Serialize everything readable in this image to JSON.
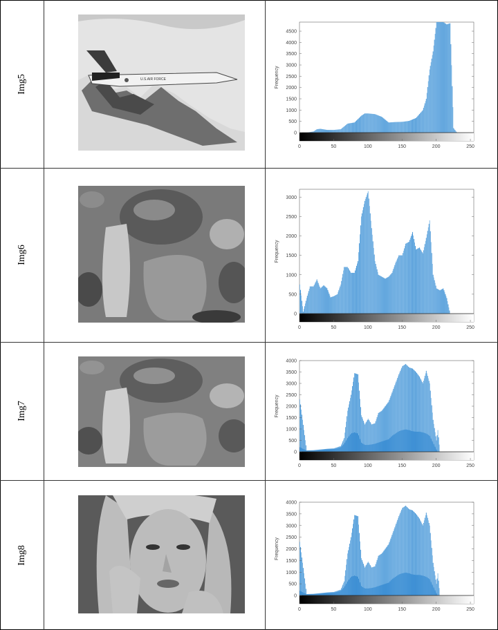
{
  "rows": [
    {
      "label": "Img5",
      "image": "fighter-jet-grayscale"
    },
    {
      "label": "Img6",
      "image": "peppers-grayscale"
    },
    {
      "label": "Img7",
      "image": "peppers-grayscale-contrast"
    },
    {
      "label": "Img8",
      "image": "woman-portrait-grayscale"
    }
  ],
  "chart_data": [
    {
      "type": "bar",
      "title": "",
      "xlabel": "",
      "ylabel": "Frequency",
      "xlim": [
        0,
        255
      ],
      "ylim": [
        0,
        4900
      ],
      "xticks": [
        0,
        50,
        100,
        150,
        200,
        250
      ],
      "yticks": [
        0,
        500,
        1000,
        1500,
        2000,
        2500,
        3000,
        3500,
        4000,
        4500
      ],
      "grid": false,
      "colorbar": "grayscale 0-255 below axis",
      "x": [
        0,
        10,
        20,
        25,
        30,
        40,
        50,
        60,
        70,
        80,
        90,
        95,
        100,
        110,
        120,
        130,
        140,
        150,
        160,
        170,
        180,
        185,
        190,
        195,
        200,
        205,
        210,
        215,
        220,
        225,
        230,
        255
      ],
      "values": [
        0,
        0,
        50,
        150,
        170,
        120,
        120,
        150,
        400,
        450,
        750,
        850,
        850,
        820,
        700,
        450,
        470,
        480,
        520,
        650,
        1000,
        1500,
        2800,
        3600,
        4900,
        4900,
        4900,
        4800,
        4850,
        200,
        0,
        0
      ]
    },
    {
      "type": "bar",
      "title": "",
      "xlabel": "",
      "ylabel": "Frequency",
      "xlim": [
        0,
        255
      ],
      "ylim": [
        0,
        3200
      ],
      "xticks": [
        0,
        50,
        100,
        150,
        200,
        250
      ],
      "yticks": [
        0,
        500,
        1000,
        1500,
        2000,
        2500,
        3000
      ],
      "grid": false,
      "colorbar": "grayscale 0-255 below axis",
      "x": [
        0,
        5,
        10,
        15,
        20,
        25,
        30,
        35,
        40,
        45,
        50,
        55,
        60,
        65,
        70,
        75,
        80,
        85,
        90,
        95,
        100,
        105,
        110,
        115,
        120,
        125,
        130,
        135,
        140,
        145,
        150,
        155,
        160,
        165,
        170,
        175,
        180,
        185,
        190,
        195,
        200,
        205,
        210,
        215,
        220,
        225,
        255
      ],
      "values": [
        750,
        50,
        400,
        700,
        700,
        880,
        650,
        730,
        650,
        420,
        450,
        500,
        750,
        1200,
        1200,
        1050,
        1050,
        1350,
        2500,
        2900,
        3150,
        2200,
        1350,
        1000,
        950,
        900,
        950,
        1050,
        1300,
        1500,
        1500,
        1800,
        1850,
        2100,
        1650,
        1700,
        1550,
        1950,
        2400,
        1000,
        650,
        600,
        650,
        400,
        0,
        0,
        0
      ]
    },
    {
      "type": "bar",
      "title": "",
      "xlabel": "",
      "ylabel": "Frequency",
      "xlim": [
        0,
        255
      ],
      "ylim": [
        0,
        4000
      ],
      "xticks": [
        0,
        50,
        100,
        150,
        200,
        250
      ],
      "yticks": [
        0,
        500,
        1000,
        1500,
        2000,
        2500,
        3000,
        3500,
        4000
      ],
      "grid": false,
      "colorbar": "grayscale 0-255 below axis",
      "x": [
        0,
        10,
        20,
        30,
        40,
        50,
        55,
        60,
        65,
        70,
        75,
        80,
        85,
        90,
        95,
        100,
        105,
        110,
        115,
        120,
        125,
        130,
        135,
        140,
        145,
        150,
        155,
        160,
        165,
        170,
        175,
        180,
        185,
        190,
        195,
        200,
        202,
        205,
        255
      ],
      "values": [
        2300,
        60,
        70,
        100,
        130,
        150,
        200,
        250,
        600,
        1800,
        2500,
        3450,
        3400,
        1600,
        1200,
        1450,
        1200,
        1250,
        1700,
        1800,
        2000,
        2200,
        2600,
        3000,
        3400,
        3750,
        3850,
        3700,
        3650,
        3500,
        3300,
        3000,
        3550,
        3000,
        1400,
        500,
        950,
        0,
        0
      ],
      "lower_envelope": [
        200,
        50,
        60,
        80,
        100,
        120,
        150,
        200,
        350,
        600,
        800,
        850,
        800,
        400,
        300,
        300,
        320,
        350,
        400,
        450,
        500,
        550,
        700,
        800,
        900,
        950,
        980,
        950,
        900,
        880,
        880,
        850,
        800,
        700,
        400,
        100,
        0,
        0,
        0
      ]
    },
    {
      "type": "bar",
      "title": "",
      "xlabel": "",
      "ylabel": "Frequency",
      "xlim": [
        0,
        255
      ],
      "ylim": [
        0,
        4000
      ],
      "xticks": [
        0,
        50,
        100,
        150,
        200,
        250
      ],
      "yticks": [
        0,
        500,
        1000,
        1500,
        2000,
        2500,
        3000,
        3500,
        4000
      ],
      "grid": false,
      "colorbar": "grayscale 0-255 below axis",
      "x": [
        0,
        10,
        20,
        30,
        40,
        50,
        55,
        60,
        65,
        70,
        75,
        80,
        85,
        90,
        95,
        100,
        105,
        110,
        115,
        120,
        125,
        130,
        135,
        140,
        145,
        150,
        155,
        160,
        165,
        170,
        175,
        180,
        185,
        190,
        195,
        200,
        202,
        205,
        255
      ],
      "values": [
        2300,
        60,
        70,
        100,
        130,
        150,
        200,
        250,
        600,
        1800,
        2500,
        3450,
        3400,
        1600,
        1200,
        1450,
        1200,
        1250,
        1700,
        1800,
        2000,
        2200,
        2600,
        3000,
        3400,
        3750,
        3850,
        3700,
        3650,
        3500,
        3300,
        3000,
        3550,
        3000,
        1400,
        500,
        950,
        0,
        0
      ],
      "lower_envelope": [
        200,
        50,
        60,
        80,
        100,
        120,
        150,
        200,
        350,
        600,
        800,
        850,
        800,
        400,
        300,
        300,
        320,
        350,
        400,
        450,
        500,
        550,
        700,
        800,
        900,
        950,
        980,
        950,
        900,
        880,
        880,
        850,
        800,
        700,
        400,
        100,
        0,
        0,
        0
      ]
    }
  ],
  "colors": {
    "bar": "#3d8fd4",
    "bar_light": "#7db8e6",
    "border": "#222222"
  }
}
